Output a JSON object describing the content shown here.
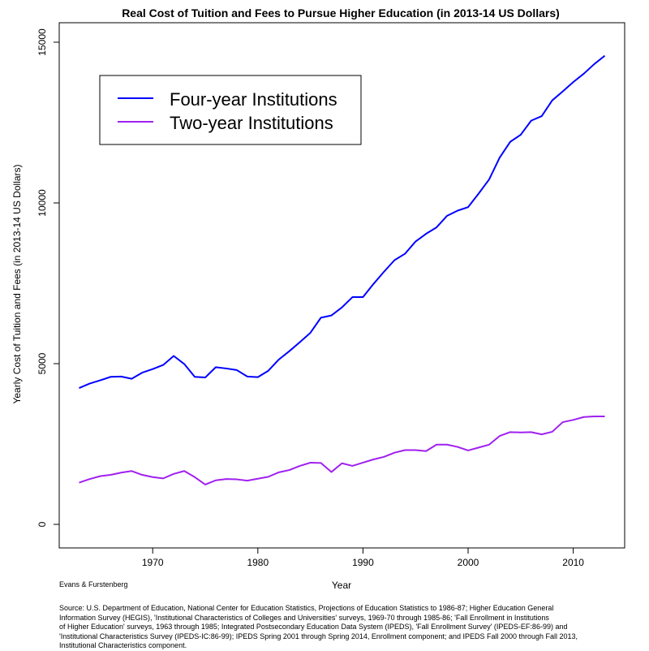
{
  "chart_data": {
    "type": "line",
    "title": "Real Cost of Tuition and Fees to Pursue Higher Education (in 2013-14 US Dollars)",
    "xlabel": "Year",
    "ylabel": "Yearly Cost of Tuition and Fees (in 2013-14 US Dollars)",
    "xlim": [
      1963,
      2013
    ],
    "ylim": [
      0,
      15000
    ],
    "xticks": [
      1970,
      1980,
      1990,
      2000,
      2010
    ],
    "yticks": [
      0,
      5000,
      10000,
      15000
    ],
    "grid": false,
    "legend_position": "top-left",
    "x": [
      1963,
      1964,
      1965,
      1966,
      1967,
      1968,
      1969,
      1970,
      1971,
      1972,
      1973,
      1974,
      1975,
      1976,
      1977,
      1978,
      1979,
      1980,
      1981,
      1982,
      1983,
      1984,
      1985,
      1986,
      1987,
      1988,
      1989,
      1990,
      1991,
      1992,
      1993,
      1994,
      1995,
      1996,
      1997,
      1998,
      1999,
      2000,
      2001,
      2002,
      2003,
      2004,
      2005,
      2006,
      2007,
      2008,
      2009,
      2010,
      2011,
      2012,
      2013
    ],
    "series": [
      {
        "name": "Four-year Institutions",
        "color": "#0000ff",
        "values": [
          4240,
          4380,
          4480,
          4590,
          4600,
          4530,
          4720,
          4830,
          4960,
          5240,
          4990,
          4590,
          4570,
          4890,
          4850,
          4800,
          4600,
          4580,
          4780,
          5130,
          5390,
          5670,
          5960,
          6430,
          6500,
          6750,
          7070,
          7070,
          7480,
          7860,
          8220,
          8420,
          8800,
          9040,
          9240,
          9600,
          9760,
          9870,
          10290,
          10730,
          11410,
          11900,
          12120,
          12560,
          12700,
          13190,
          13470,
          13760,
          14020,
          14320,
          14580
        ]
      },
      {
        "name": "Two-year Institutions",
        "color": "#a020f0",
        "values": [
          1300,
          1410,
          1500,
          1540,
          1610,
          1660,
          1540,
          1470,
          1430,
          1570,
          1660,
          1470,
          1240,
          1370,
          1410,
          1400,
          1360,
          1420,
          1480,
          1620,
          1690,
          1820,
          1920,
          1910,
          1630,
          1900,
          1820,
          1920,
          2020,
          2100,
          2230,
          2310,
          2310,
          2280,
          2480,
          2480,
          2410,
          2300,
          2390,
          2480,
          2750,
          2870,
          2860,
          2870,
          2800,
          2880,
          3180,
          3250,
          3340,
          3360,
          3360
        ]
      }
    ]
  },
  "credit": "Evans & Furstenberg",
  "source": "Source: U.S. Department of Education, National Center for Education Statistics, Projections of Education Statistics to 1986-87; Higher Education General\n Information Survey (HEGIS), 'Institutional Characteristics of Colleges and Universities' surveys, 1969-70 through 1985-86; 'Fall Enrollment in Institutions\n of Higher Education' surveys, 1963 through 1985; Integrated Postsecondary Education Data System (IPEDS), 'Fall Enrollment Survey' (IPEDS-EF:86-99) and\n 'Institutional Characteristics Survey (IPEDS-IC:86-99); IPEDS Spring 2001 through Spring 2014, Enrollment component; and IPEDS Fall 2000 through Fall 2013,\n Institutional Characteristics component."
}
